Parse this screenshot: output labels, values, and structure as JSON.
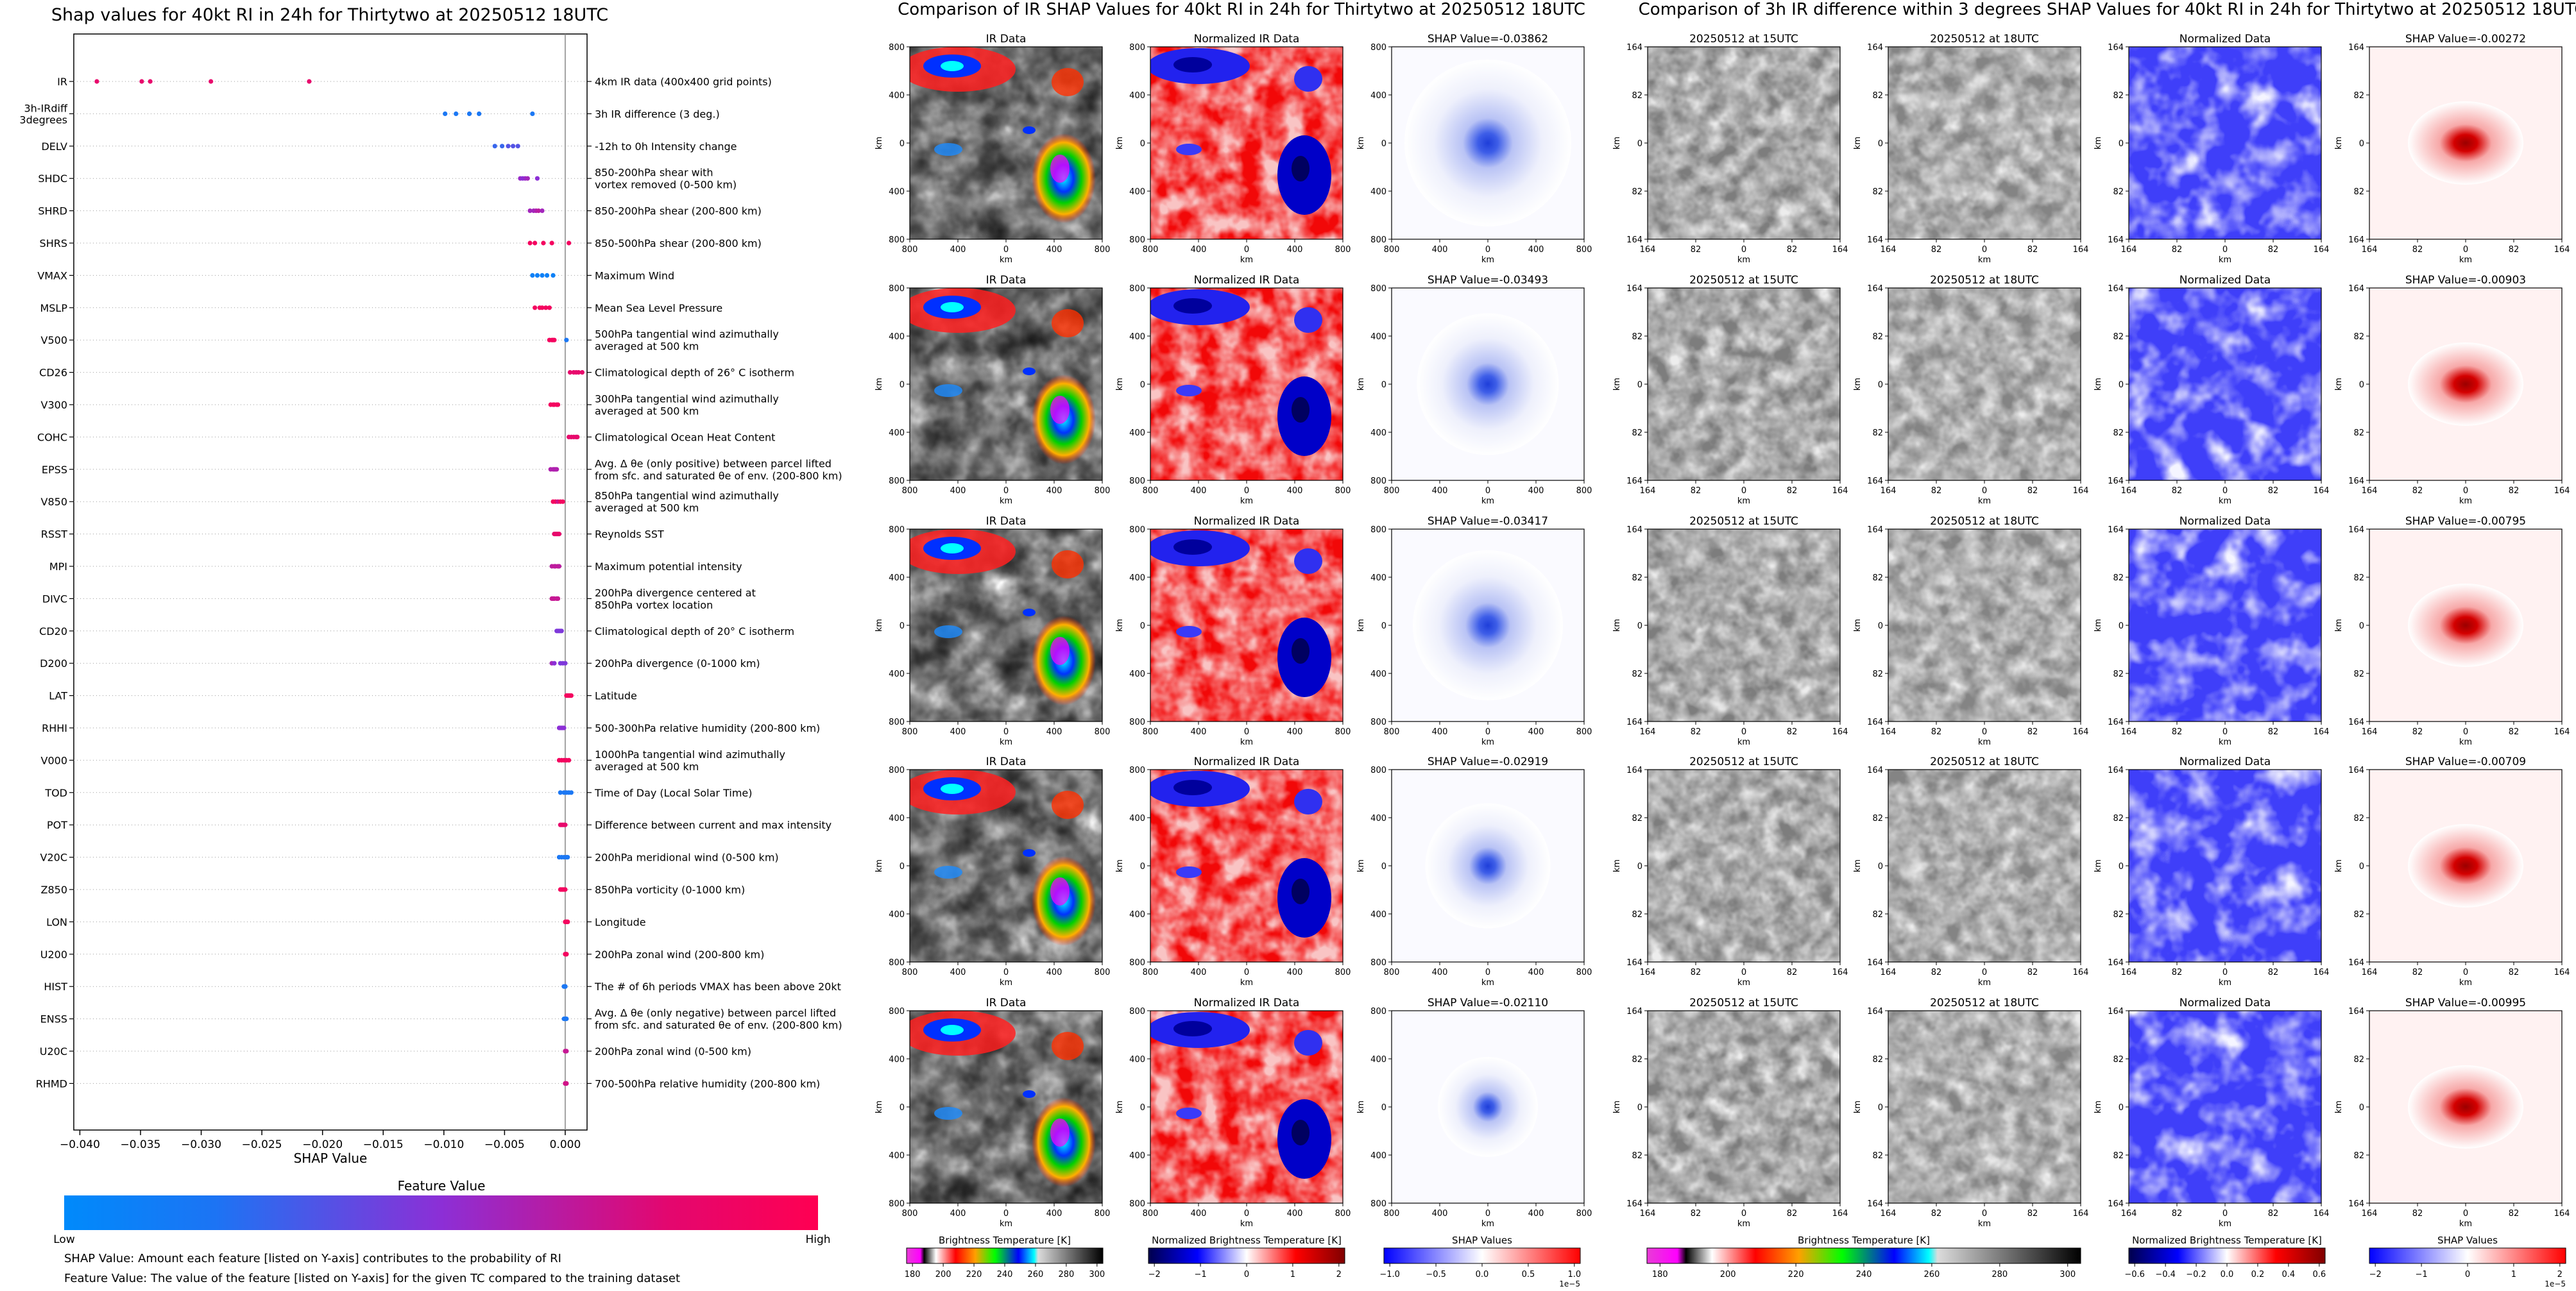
{
  "colors": {
    "feature_low": "#008afb",
    "feature_mid": "#8c2fd6",
    "feature_high": "#ff0052"
  },
  "left": {
    "title": "Shap values for 40kt RI in 24h for Thirtytwo at 20250512 18UTC",
    "xlabel": "SHAP Value",
    "colorbar_title": "Feature Value",
    "colorbar_low": "Low",
    "colorbar_high": "High",
    "note1": "SHAP Value: Amount each feature [listed on Y-axis] contributes to the probability of RI",
    "note2": "Feature Value: The value of the feature [listed on Y-axis] for the given TC compared to the training dataset"
  },
  "middle": {
    "title": "Comparison of IR SHAP Values for 40kt RI in 24h for Thirtytwo at 20250512 18UTC",
    "col_titles": [
      "IR Data",
      "Normalized IR Data"
    ],
    "shap_titles": [
      "SHAP Value=-0.03862",
      "SHAP Value=-0.03493",
      "SHAP Value=-0.03417",
      "SHAP Value=-0.02919",
      "SHAP Value=-0.02110"
    ],
    "ticks": [
      "800",
      "400",
      "0",
      "400",
      "800"
    ],
    "unit": "km",
    "cbars": [
      {
        "label": "Brightness Temperature [K]",
        "ticks": [
          "180",
          "200",
          "220",
          "240",
          "260",
          "280",
          "300"
        ]
      },
      {
        "label": "Normalized Brightness Temperature [K]",
        "ticks": [
          "−2",
          "−1",
          "0",
          "1",
          "2"
        ]
      },
      {
        "label": "SHAP Values",
        "ticks": [
          "−1.0",
          "−0.5",
          "0.0",
          "0.5",
          "1.0"
        ],
        "exp": "1e−5"
      }
    ]
  },
  "right": {
    "title": "Comparison of 3h IR difference within 3 degrees SHAP Values for 40kt RI in 24h for Thirtytwo at 20250512 18UTC",
    "col_titles": [
      "20250512 at 15UTC",
      "20250512 at 18UTC",
      "Normalized Data"
    ],
    "shap_titles": [
      "SHAP Value=-0.00272",
      "SHAP Value=-0.00903",
      "SHAP Value=-0.00795",
      "SHAP Value=-0.00709",
      "SHAP Value=-0.00995"
    ],
    "ticks": [
      "164",
      "82",
      "0",
      "82",
      "164"
    ],
    "unit": "km",
    "cbars": [
      {
        "label": "Brightness Temperature [K]",
        "ticks": [
          "180",
          "200",
          "220",
          "240",
          "260",
          "280",
          "300"
        ]
      },
      {
        "label": "Normalized Brightness Temperature [K]",
        "ticks": [
          "−0.6",
          "−0.4",
          "−0.2",
          "0.0",
          "0.2",
          "0.4",
          "0.6"
        ]
      },
      {
        "label": "SHAP Values",
        "ticks": [
          "−2",
          "−1",
          "0",
          "1",
          "2"
        ],
        "exp": "1e−5"
      }
    ]
  },
  "chart_data": {
    "type": "scatter",
    "title": "Shap values for 40kt RI in 24h for Thirtytwo at 20250512 18UTC",
    "xlabel": "SHAP Value",
    "xlim": [
      -0.0405,
      0.0018
    ],
    "xticks": [
      -0.04,
      -0.035,
      -0.03,
      -0.025,
      -0.02,
      -0.015,
      -0.01,
      -0.005,
      0.0
    ],
    "xtick_labels": [
      "−0.040",
      "−0.035",
      "−0.030",
      "−0.025",
      "−0.020",
      "−0.015",
      "−0.010",
      "−0.005",
      "0.000"
    ],
    "features": [
      {
        "code": "IR",
        "desc": [
          "4km IR data (400x400 grid points)"
        ],
        "shap": [
          -0.0386,
          -0.0349,
          -0.0342,
          -0.0292,
          -0.0211
        ],
        "fv": [
          0.9,
          0.9,
          0.9,
          0.9,
          0.9
        ]
      },
      {
        "code": "3h-IRdiff\n3degrees",
        "desc": [
          "3h IR difference (3 deg.)"
        ],
        "shap": [
          -0.0099,
          -0.009,
          -0.0079,
          -0.0071,
          -0.0027
        ],
        "fv": [
          0.1,
          0.1,
          0.1,
          0.1,
          0.1
        ]
      },
      {
        "code": "DELV",
        "desc": [
          "-12h to 0h Intensity change"
        ],
        "shap": [
          -0.0058,
          -0.0052,
          -0.0047,
          -0.0043,
          -0.0039
        ],
        "fv": [
          0.2,
          0.2,
          0.3,
          0.3,
          0.3
        ]
      },
      {
        "code": "SHDC",
        "desc": [
          "850-200hPa shear with",
          "vortex removed (0-500 km)"
        ],
        "shap": [
          -0.0037,
          -0.0035,
          -0.0033,
          -0.0031,
          -0.0023
        ],
        "fv": [
          0.55,
          0.5,
          0.55,
          0.6,
          0.5
        ]
      },
      {
        "code": "SHRD",
        "desc": [
          "850-200hPa shear (200-800 km)"
        ],
        "shap": [
          -0.0029,
          -0.0026,
          -0.0024,
          -0.0022,
          -0.0019
        ],
        "fv": [
          0.6,
          0.6,
          0.65,
          0.7,
          0.6
        ]
      },
      {
        "code": "SHRS",
        "desc": [
          "850-500hPa shear (200-800 km)"
        ],
        "shap": [
          -0.0029,
          -0.0025,
          -0.0018,
          -0.0011,
          0.0003
        ],
        "fv": [
          0.95,
          0.95,
          0.95,
          0.95,
          0.95
        ]
      },
      {
        "code": "VMAX",
        "desc": [
          "Maximum Wind"
        ],
        "shap": [
          -0.0027,
          -0.0023,
          -0.0019,
          -0.0015,
          -0.001
        ],
        "fv": [
          0.05,
          0.05,
          0.05,
          0.05,
          0.05
        ]
      },
      {
        "code": "MSLP",
        "desc": [
          "Mean Sea Level Pressure"
        ],
        "shap": [
          -0.0025,
          -0.0021,
          -0.0019,
          -0.0016,
          -0.0013
        ],
        "fv": [
          0.95,
          0.95,
          0.95,
          0.95,
          0.95
        ]
      },
      {
        "code": "V500",
        "desc": [
          "500hPa tangential wind azimuthally",
          "averaged at 500 km"
        ],
        "shap": [
          -0.0013,
          -0.0011,
          -0.001,
          -0.0009,
          0.0001
        ],
        "fv": [
          0.95,
          0.95,
          0.95,
          0.95,
          0.1
        ]
      },
      {
        "code": "CD26",
        "desc": [
          "Climatological depth of 26° C isotherm"
        ],
        "shap": [
          0.0004,
          0.0007,
          0.0009,
          0.0011,
          0.0014
        ],
        "fv": [
          0.9,
          0.9,
          0.9,
          0.9,
          0.9
        ]
      },
      {
        "code": "V300",
        "desc": [
          "300hPa tangential wind azimuthally",
          "averaged at 500 km"
        ],
        "shap": [
          -0.0012,
          -0.001,
          -0.0009,
          -0.0007,
          -0.0006
        ],
        "fv": [
          0.95,
          0.95,
          0.95,
          0.95,
          0.95
        ]
      },
      {
        "code": "COHC",
        "desc": [
          "Climatological Ocean Heat Content"
        ],
        "shap": [
          0.0003,
          0.0005,
          0.0007,
          0.0009,
          0.001
        ],
        "fv": [
          0.9,
          0.9,
          0.9,
          0.9,
          0.9
        ]
      },
      {
        "code": "EPSS",
        "desc": [
          "Avg. Δ θe (only positive) between parcel lifted",
          "from sfc. and saturated θe of env. (200-800 km)"
        ],
        "shap": [
          -0.0012,
          -0.001,
          -0.0009,
          -0.0008,
          -0.0007
        ],
        "fv": [
          0.65,
          0.65,
          0.65,
          0.65,
          0.65
        ]
      },
      {
        "code": "V850",
        "desc": [
          "850hPa tangential wind azimuthally",
          "averaged at 500 km"
        ],
        "shap": [
          -0.001,
          -0.0008,
          -0.0006,
          -0.0004,
          -0.0002
        ],
        "fv": [
          0.95,
          0.95,
          0.8,
          0.95,
          0.95
        ]
      },
      {
        "code": "RSST",
        "desc": [
          "Reynolds SST"
        ],
        "shap": [
          -0.0009,
          -0.0008,
          -0.0007,
          -0.0006,
          -0.0005
        ],
        "fv": [
          0.9,
          0.9,
          0.9,
          0.9,
          0.9
        ]
      },
      {
        "code": "MPI",
        "desc": [
          "Maximum potential intensity"
        ],
        "shap": [
          -0.0011,
          -0.0009,
          -0.0008,
          -0.0006,
          -0.0005
        ],
        "fv": [
          0.7,
          0.75,
          0.7,
          0.75,
          0.7
        ]
      },
      {
        "code": "DIVC",
        "desc": [
          "200hPa divergence centered at",
          "850hPa vortex location"
        ],
        "shap": [
          -0.0011,
          -0.001,
          -0.0009,
          -0.0007,
          -0.0006
        ],
        "fv": [
          0.75,
          0.75,
          0.75,
          0.75,
          0.75
        ]
      },
      {
        "code": "CD20",
        "desc": [
          "Climatological depth of 20° C isotherm"
        ],
        "shap": [
          -0.0007,
          -0.0006,
          -0.0005,
          -0.0004,
          -0.0003
        ],
        "fv": [
          0.45,
          0.45,
          0.45,
          0.45,
          0.45
        ]
      },
      {
        "code": "D200",
        "desc": [
          "200hPa divergence (0-1000 km)"
        ],
        "shap": [
          -0.0011,
          -0.0009,
          -0.0004,
          -0.0002,
          0.0
        ],
        "fv": [
          0.6,
          0.5,
          0.45,
          0.45,
          0.45
        ]
      },
      {
        "code": "LAT",
        "desc": [
          "Latitude"
        ],
        "shap": [
          0.0001,
          0.0002,
          0.0003,
          0.0004,
          0.0005
        ],
        "fv": [
          0.95,
          0.95,
          0.95,
          0.95,
          0.95
        ]
      },
      {
        "code": "RHHI",
        "desc": [
          "500-300hPa relative humidity (200-800 km)"
        ],
        "shap": [
          -0.0005,
          -0.0004,
          -0.0003,
          -0.0002,
          -0.0001
        ],
        "fv": [
          0.5,
          0.5,
          0.5,
          0.5,
          0.5
        ]
      },
      {
        "code": "V000",
        "desc": [
          "1000hPa tangential wind azimuthally",
          "averaged at 500 km"
        ],
        "shap": [
          -0.0005,
          -0.0003,
          -0.0001,
          0.0001,
          0.0003
        ],
        "fv": [
          0.95,
          0.95,
          0.95,
          0.95,
          0.95
        ]
      },
      {
        "code": "TOD",
        "desc": [
          "Time of Day (Local Solar Time)"
        ],
        "shap": [
          -0.0004,
          -0.0001,
          0.0001,
          0.0003,
          0.0005
        ],
        "fv": [
          0.1,
          0.1,
          0.1,
          0.1,
          0.1
        ]
      },
      {
        "code": "POT",
        "desc": [
          "Difference between current and max intensity"
        ],
        "shap": [
          -0.0004,
          -0.0003,
          -0.0002,
          -0.0001,
          0.0
        ],
        "fv": [
          0.9,
          0.9,
          0.9,
          0.9,
          0.9
        ]
      },
      {
        "code": "V20C",
        "desc": [
          "200hPa meridional wind (0-500 km)"
        ],
        "shap": [
          -0.0005,
          -0.0003,
          -0.0001,
          0.0001,
          0.0002
        ],
        "fv": [
          0.1,
          0.1,
          0.1,
          0.1,
          0.1
        ]
      },
      {
        "code": "Z850",
        "desc": [
          "850hPa vorticity (0-1000 km)"
        ],
        "shap": [
          -0.0004,
          -0.0003,
          -0.0002,
          -0.0001,
          0.0
        ],
        "fv": [
          0.95,
          0.95,
          0.95,
          0.95,
          0.95
        ]
      },
      {
        "code": "LON",
        "desc": [
          "Longitude"
        ],
        "shap": [
          0.0,
          0.0001,
          0.0001,
          0.0002,
          0.0002
        ],
        "fv": [
          0.95,
          0.95,
          0.95,
          0.95,
          0.95
        ]
      },
      {
        "code": "U200",
        "desc": [
          "200hPa zonal wind (200-800 km)"
        ],
        "shap": [
          0.0,
          0.0,
          0.0001,
          0.0001,
          0.0001
        ],
        "fv": [
          0.95,
          0.95,
          0.95,
          0.95,
          0.95
        ]
      },
      {
        "code": "HIST",
        "desc": [
          "The # of 6h periods VMAX has been above 20kt"
        ],
        "shap": [
          -0.0001,
          -0.0001,
          0.0,
          0.0,
          0.0
        ],
        "fv": [
          0.1,
          0.1,
          0.1,
          0.1,
          0.1
        ]
      },
      {
        "code": "ENSS",
        "desc": [
          "Avg. Δ θe (only negative) between parcel lifted",
          "from sfc. and saturated θe of env. (200-800 km)"
        ],
        "shap": [
          -0.0001,
          0.0,
          0.0,
          0.0,
          0.0001
        ],
        "fv": [
          0.1,
          0.1,
          0.1,
          0.1,
          0.1
        ]
      },
      {
        "code": "U20C",
        "desc": [
          "200hPa zonal wind (0-500 km)"
        ],
        "shap": [
          0.0,
          0.0,
          0.0,
          0.0001,
          0.0001
        ],
        "fv": [
          0.75,
          0.75,
          0.75,
          0.75,
          0.75
        ]
      },
      {
        "code": "RHMD",
        "desc": [
          "700-500hPa relative humidity (200-800 km)"
        ],
        "shap": [
          0.0,
          0.0,
          0.0,
          0.0001,
          0.0001
        ],
        "fv": [
          0.8,
          0.8,
          0.8,
          0.8,
          0.8
        ]
      }
    ]
  }
}
